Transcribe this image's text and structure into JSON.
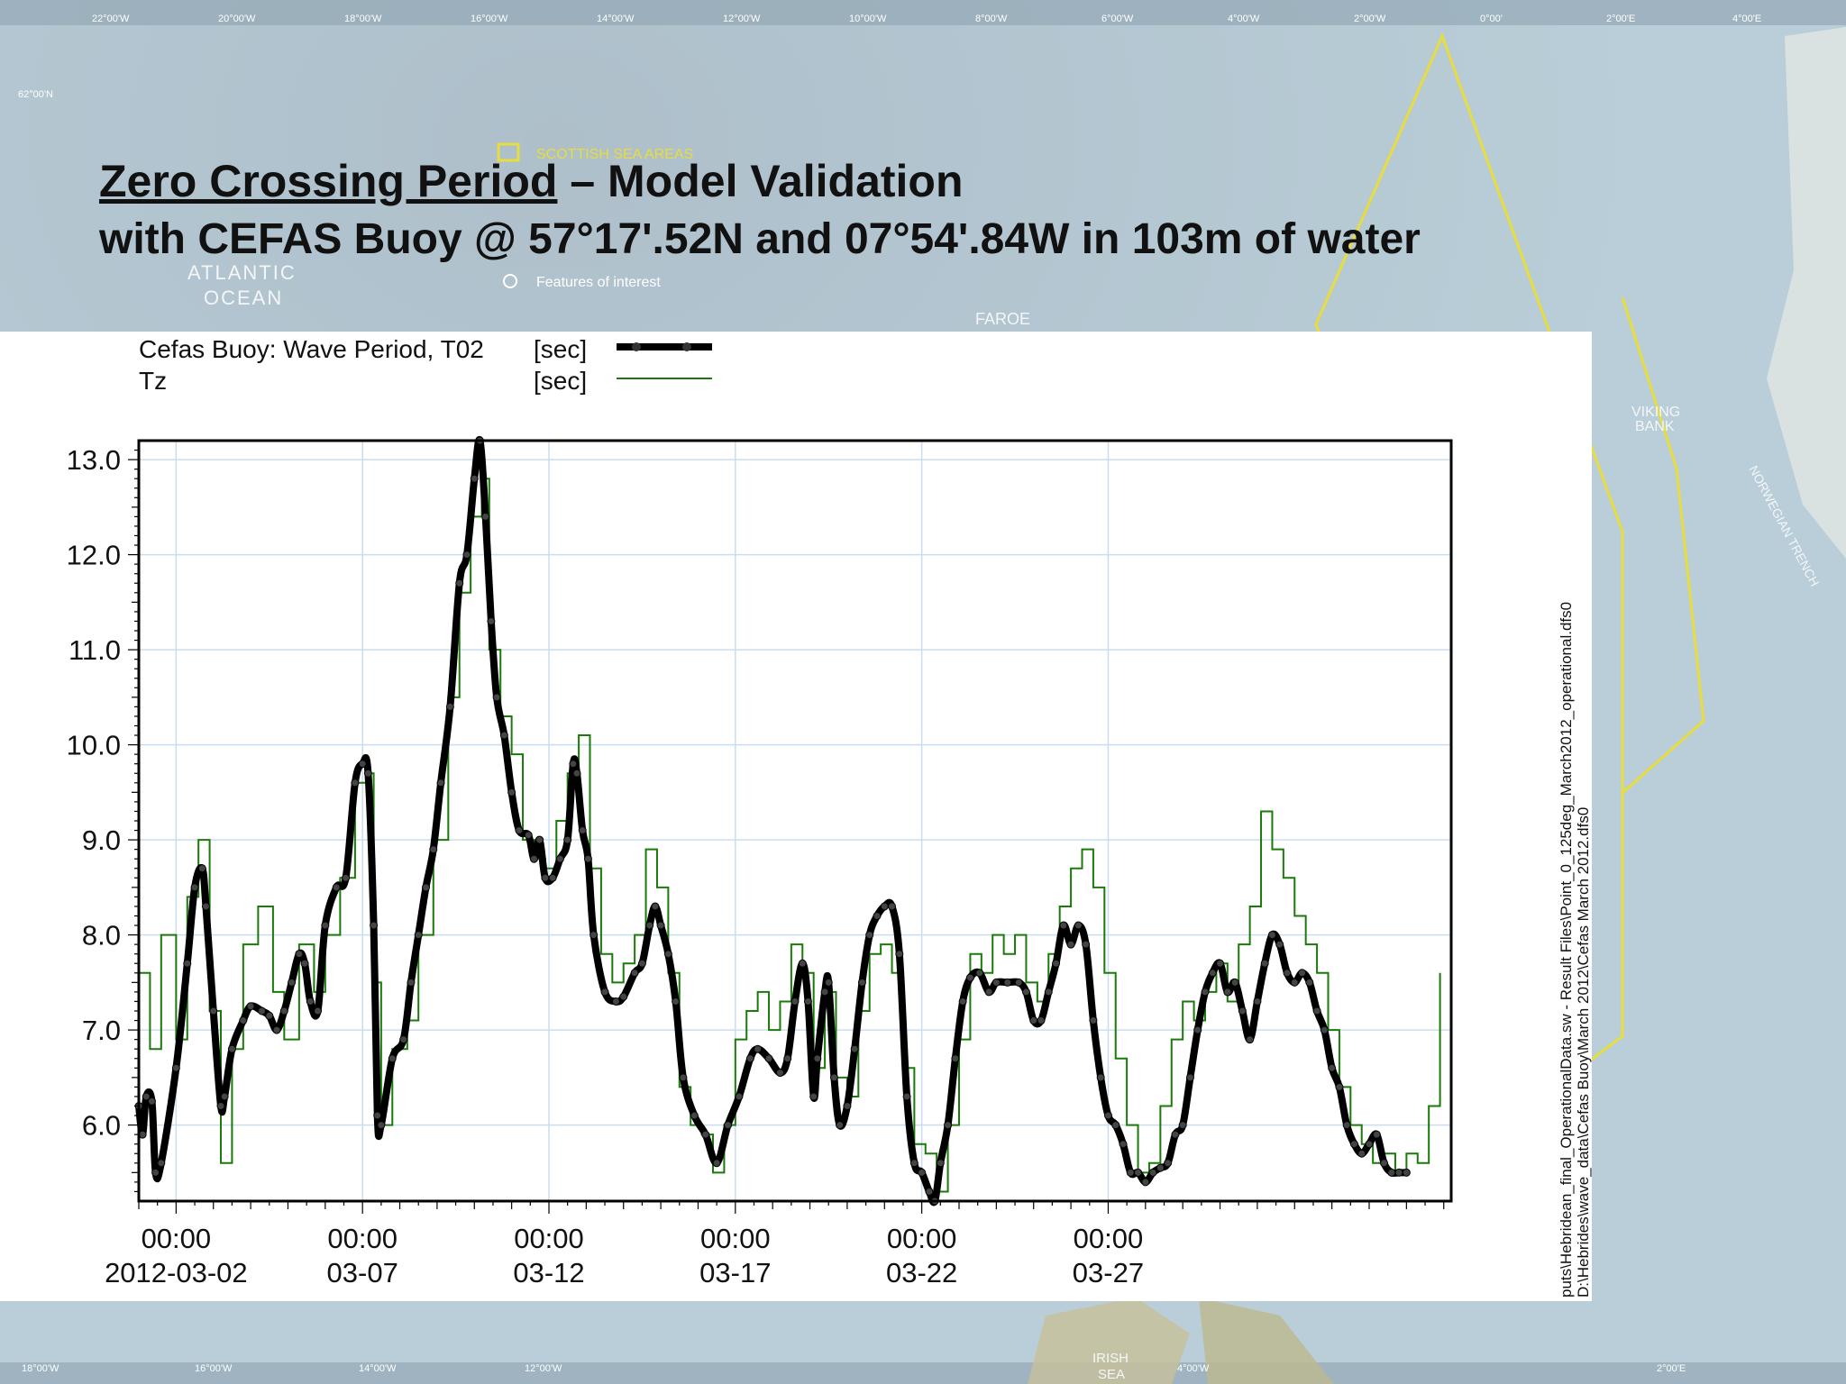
{
  "slide": {
    "title_underlined": "Zero Crossing Period",
    "title_rest": " – Model Validation",
    "subtitle": "with CEFAS Buoy @ 57°17'.52N and 07°54'.84W in 103m of water"
  },
  "map_labels": {
    "legend_scottish_sea_areas": "SCOTTISH SEA AREAS",
    "legend_features": "Features of interest",
    "atlantic": "ATLANTIC",
    "ocean": "OCEAN",
    "faroe": "FAROE",
    "viking": "VIKING",
    "bank": "BANK",
    "norwegian_trench": "NORWEGIAN TRENCH",
    "irish": "IRISH",
    "sea": "SEA",
    "lat_62": "62°00'N",
    "top_lon": [
      "22°00'W",
      "20°00'W",
      "18°00'W",
      "16°00'W",
      "14°00'W",
      "12°00'W",
      "10°00'W",
      "8°00'W",
      "6°00'W",
      "4°00'W",
      "2°00'W",
      "0°00'",
      "2°00'E",
      "4°00'E"
    ],
    "bottom_lon": [
      "18°00'W",
      "16°00'W",
      "14°00'W",
      "12°00'W",
      "4°00'W",
      "2°00'E"
    ]
  },
  "colors": {
    "series1": "#000000",
    "series2": "#1a7a0a",
    "grid": "#c9ddf0",
    "sea_area_line": "#e8dd3c"
  },
  "side_paths": {
    "line1": "puts\\Hebridean_final_OperationalData.sw - Result Files\\Point_0_125deg_March2012_operational.dfs0",
    "line2": "D:\\Hebrides\\wave_data\\Cefas Buoy\\March 2012\\Cefas March 2012.dfs0"
  },
  "chart_data": {
    "type": "line",
    "title": "",
    "xlabel": "",
    "ylabel": "",
    "x_range_days": [
      1.0,
      32.2
    ],
    "ylim": [
      5.2,
      13.2
    ],
    "yticks": [
      "13.0",
      "12.0",
      "11.0",
      "10.0",
      "9.0",
      "8.0",
      "7.0",
      "6.0"
    ],
    "xticks": [
      {
        "time": "00:00",
        "date": "2012-03-02"
      },
      {
        "time": "00:00",
        "date": "03-07"
      },
      {
        "time": "00:00",
        "date": "03-12"
      },
      {
        "time": "00:00",
        "date": "03-17"
      },
      {
        "time": "00:00",
        "date": "03-22"
      },
      {
        "time": "00:00",
        "date": "03-27"
      }
    ],
    "grid": true,
    "legend_position": "top-left",
    "series": [
      {
        "name": "Cefas Buoy: Wave Period, T02",
        "unit": "[sec]",
        "style": "thick line with circle markers",
        "points": [
          [
            1.0,
            6.2
          ],
          [
            1.1,
            5.9
          ],
          [
            1.2,
            6.3
          ],
          [
            1.35,
            6.25
          ],
          [
            1.45,
            5.5
          ],
          [
            1.6,
            5.6
          ],
          [
            2.0,
            6.6
          ],
          [
            2.3,
            7.7
          ],
          [
            2.5,
            8.5
          ],
          [
            2.7,
            8.7
          ],
          [
            2.8,
            8.3
          ],
          [
            3.0,
            7.2
          ],
          [
            3.2,
            6.2
          ],
          [
            3.3,
            6.3
          ],
          [
            3.5,
            6.8
          ],
          [
            3.8,
            7.1
          ],
          [
            4.0,
            7.25
          ],
          [
            4.3,
            7.2
          ],
          [
            4.5,
            7.15
          ],
          [
            4.7,
            7.0
          ],
          [
            4.9,
            7.2
          ],
          [
            5.1,
            7.5
          ],
          [
            5.3,
            7.8
          ],
          [
            5.45,
            7.7
          ],
          [
            5.6,
            7.3
          ],
          [
            5.8,
            7.2
          ],
          [
            6.0,
            8.1
          ],
          [
            6.3,
            8.5
          ],
          [
            6.55,
            8.6
          ],
          [
            6.8,
            9.6
          ],
          [
            7.0,
            9.8
          ],
          [
            7.15,
            9.7
          ],
          [
            7.3,
            8.1
          ],
          [
            7.4,
            6.1
          ],
          [
            7.5,
            6.0
          ],
          [
            7.8,
            6.7
          ],
          [
            8.1,
            6.9
          ],
          [
            8.3,
            7.5
          ],
          [
            8.5,
            8.0
          ],
          [
            8.7,
            8.5
          ],
          [
            8.9,
            8.9
          ],
          [
            9.1,
            9.6
          ],
          [
            9.35,
            10.4
          ],
          [
            9.6,
            11.7
          ],
          [
            9.8,
            12.0
          ],
          [
            10.0,
            12.8
          ],
          [
            10.15,
            13.2
          ],
          [
            10.3,
            12.4
          ],
          [
            10.45,
            11.3
          ],
          [
            10.6,
            10.5
          ],
          [
            10.8,
            10.1
          ],
          [
            11.0,
            9.5
          ],
          [
            11.2,
            9.1
          ],
          [
            11.45,
            9.05
          ],
          [
            11.6,
            8.8
          ],
          [
            11.75,
            9.0
          ],
          [
            11.9,
            8.6
          ],
          [
            12.1,
            8.6
          ],
          [
            12.3,
            8.8
          ],
          [
            12.5,
            9.0
          ],
          [
            12.65,
            9.8
          ],
          [
            12.75,
            9.7
          ],
          [
            12.9,
            9.1
          ],
          [
            13.05,
            8.8
          ],
          [
            13.2,
            8.0
          ],
          [
            13.5,
            7.4
          ],
          [
            13.8,
            7.3
          ],
          [
            14.0,
            7.35
          ],
          [
            14.3,
            7.6
          ],
          [
            14.5,
            7.7
          ],
          [
            14.7,
            8.1
          ],
          [
            14.85,
            8.3
          ],
          [
            15.0,
            8.1
          ],
          [
            15.2,
            7.8
          ],
          [
            15.4,
            7.3
          ],
          [
            15.6,
            6.5
          ],
          [
            15.9,
            6.1
          ],
          [
            16.2,
            5.9
          ],
          [
            16.5,
            5.6
          ],
          [
            16.8,
            6.0
          ],
          [
            17.1,
            6.3
          ],
          [
            17.4,
            6.7
          ],
          [
            17.6,
            6.8
          ],
          [
            17.9,
            6.7
          ],
          [
            18.2,
            6.55
          ],
          [
            18.4,
            6.7
          ],
          [
            18.6,
            7.3
          ],
          [
            18.8,
            7.7
          ],
          [
            18.95,
            7.3
          ],
          [
            19.1,
            6.3
          ],
          [
            19.2,
            6.7
          ],
          [
            19.4,
            7.4
          ],
          [
            19.5,
            7.5
          ],
          [
            19.65,
            6.5
          ],
          [
            19.8,
            6.0
          ],
          [
            20.0,
            6.2
          ],
          [
            20.2,
            6.8
          ],
          [
            20.4,
            7.5
          ],
          [
            20.6,
            8.0
          ],
          [
            20.8,
            8.2
          ],
          [
            21.0,
            8.3
          ],
          [
            21.2,
            8.3
          ],
          [
            21.4,
            7.8
          ],
          [
            21.6,
            6.3
          ],
          [
            21.8,
            5.6
          ],
          [
            22.0,
            5.5
          ],
          [
            22.2,
            5.3
          ],
          [
            22.35,
            5.2
          ],
          [
            22.5,
            5.6
          ],
          [
            22.7,
            6.0
          ],
          [
            22.9,
            6.7
          ],
          [
            23.1,
            7.3
          ],
          [
            23.3,
            7.55
          ],
          [
            23.55,
            7.6
          ],
          [
            23.8,
            7.4
          ],
          [
            24.0,
            7.5
          ],
          [
            24.3,
            7.5
          ],
          [
            24.6,
            7.5
          ],
          [
            24.8,
            7.4
          ],
          [
            25.0,
            7.1
          ],
          [
            25.2,
            7.1
          ],
          [
            25.4,
            7.4
          ],
          [
            25.6,
            7.7
          ],
          [
            25.8,
            8.1
          ],
          [
            26.0,
            7.9
          ],
          [
            26.2,
            8.1
          ],
          [
            26.4,
            7.9
          ],
          [
            26.6,
            7.1
          ],
          [
            26.8,
            6.5
          ],
          [
            27.0,
            6.1
          ],
          [
            27.2,
            6.0
          ],
          [
            27.4,
            5.8
          ],
          [
            27.6,
            5.5
          ],
          [
            27.8,
            5.5
          ],
          [
            28.0,
            5.4
          ],
          [
            28.2,
            5.5
          ],
          [
            28.4,
            5.55
          ],
          [
            28.6,
            5.6
          ],
          [
            28.8,
            5.9
          ],
          [
            29.0,
            6.0
          ],
          [
            29.2,
            6.5
          ],
          [
            29.4,
            7.0
          ],
          [
            29.6,
            7.4
          ],
          [
            29.8,
            7.6
          ],
          [
            30.0,
            7.7
          ],
          [
            30.2,
            7.4
          ],
          [
            30.4,
            7.5
          ],
          [
            30.6,
            7.2
          ],
          [
            30.8,
            6.9
          ],
          [
            31.0,
            7.3
          ],
          [
            31.2,
            7.7
          ],
          [
            31.4,
            8.0
          ],
          [
            31.6,
            7.9
          ],
          [
            31.8,
            7.6
          ],
          [
            32.0,
            7.5
          ],
          [
            32.2,
            7.6
          ],
          [
            32.4,
            7.5
          ],
          [
            32.6,
            7.2
          ],
          [
            32.8,
            7.0
          ],
          [
            33.0,
            6.6
          ],
          [
            33.2,
            6.4
          ],
          [
            33.4,
            6.0
          ],
          [
            33.6,
            5.8
          ],
          [
            33.8,
            5.7
          ],
          [
            34.0,
            5.8
          ],
          [
            34.2,
            5.9
          ],
          [
            34.4,
            5.6
          ],
          [
            34.6,
            5.5
          ],
          [
            34.8,
            5.5
          ],
          [
            35.0,
            5.5
          ]
        ]
      },
      {
        "name": "Tz",
        "unit": "[sec]",
        "style": "thin green stepped line",
        "points": [
          [
            1.0,
            7.6
          ],
          [
            1.3,
            6.8
          ],
          [
            1.6,
            8.0
          ],
          [
            2.0,
            6.9
          ],
          [
            2.3,
            8.4
          ],
          [
            2.6,
            9.0
          ],
          [
            2.9,
            7.2
          ],
          [
            3.2,
            5.6
          ],
          [
            3.5,
            6.8
          ],
          [
            3.8,
            7.9
          ],
          [
            4.2,
            8.3
          ],
          [
            4.6,
            7.4
          ],
          [
            4.9,
            6.9
          ],
          [
            5.3,
            7.9
          ],
          [
            5.7,
            7.4
          ],
          [
            6.0,
            8.0
          ],
          [
            6.4,
            8.6
          ],
          [
            6.8,
            9.6
          ],
          [
            7.1,
            9.7
          ],
          [
            7.3,
            7.5
          ],
          [
            7.5,
            6.0
          ],
          [
            7.8,
            6.8
          ],
          [
            8.2,
            7.1
          ],
          [
            8.5,
            8.0
          ],
          [
            8.9,
            9.0
          ],
          [
            9.3,
            10.5
          ],
          [
            9.6,
            11.6
          ],
          [
            9.9,
            12.4
          ],
          [
            10.2,
            12.8
          ],
          [
            10.4,
            11.0
          ],
          [
            10.7,
            10.3
          ],
          [
            11.0,
            9.9
          ],
          [
            11.3,
            9.0
          ],
          [
            11.6,
            8.8
          ],
          [
            11.9,
            8.7
          ],
          [
            12.2,
            9.2
          ],
          [
            12.5,
            9.7
          ],
          [
            12.8,
            10.1
          ],
          [
            13.1,
            8.7
          ],
          [
            13.4,
            7.8
          ],
          [
            13.7,
            7.5
          ],
          [
            14.0,
            7.7
          ],
          [
            14.3,
            8.0
          ],
          [
            14.6,
            8.9
          ],
          [
            14.9,
            8.5
          ],
          [
            15.2,
            7.6
          ],
          [
            15.5,
            6.4
          ],
          [
            15.8,
            6.0
          ],
          [
            16.1,
            5.9
          ],
          [
            16.4,
            5.5
          ],
          [
            16.7,
            6.0
          ],
          [
            17.0,
            6.9
          ],
          [
            17.3,
            7.2
          ],
          [
            17.6,
            7.4
          ],
          [
            17.9,
            7.0
          ],
          [
            18.2,
            7.3
          ],
          [
            18.5,
            7.9
          ],
          [
            18.8,
            7.6
          ],
          [
            19.1,
            6.6
          ],
          [
            19.4,
            7.4
          ],
          [
            19.7,
            6.5
          ],
          [
            20.0,
            6.3
          ],
          [
            20.3,
            7.2
          ],
          [
            20.6,
            7.8
          ],
          [
            20.9,
            7.9
          ],
          [
            21.2,
            7.6
          ],
          [
            21.5,
            6.6
          ],
          [
            21.8,
            5.8
          ],
          [
            22.1,
            5.7
          ],
          [
            22.4,
            5.3
          ],
          [
            22.7,
            6.0
          ],
          [
            23.0,
            6.9
          ],
          [
            23.3,
            7.8
          ],
          [
            23.6,
            7.6
          ],
          [
            23.9,
            8.0
          ],
          [
            24.2,
            7.8
          ],
          [
            24.5,
            8.0
          ],
          [
            24.8,
            7.5
          ],
          [
            25.1,
            7.3
          ],
          [
            25.4,
            7.8
          ],
          [
            25.7,
            8.3
          ],
          [
            26.0,
            8.7
          ],
          [
            26.3,
            8.9
          ],
          [
            26.6,
            8.5
          ],
          [
            26.9,
            7.6
          ],
          [
            27.2,
            6.7
          ],
          [
            27.5,
            6.0
          ],
          [
            27.8,
            5.5
          ],
          [
            28.1,
            5.6
          ],
          [
            28.4,
            6.2
          ],
          [
            28.7,
            6.9
          ],
          [
            29.0,
            7.3
          ],
          [
            29.3,
            7.1
          ],
          [
            29.6,
            7.4
          ],
          [
            29.9,
            7.7
          ],
          [
            30.2,
            7.3
          ],
          [
            30.5,
            7.9
          ],
          [
            30.8,
            8.3
          ],
          [
            31.1,
            9.3
          ],
          [
            31.4,
            8.9
          ],
          [
            31.7,
            8.6
          ],
          [
            32.0,
            8.2
          ],
          [
            32.3,
            7.9
          ],
          [
            32.6,
            7.6
          ],
          [
            32.9,
            7.0
          ],
          [
            33.2,
            6.4
          ],
          [
            33.5,
            6.0
          ],
          [
            33.8,
            5.8
          ],
          [
            34.1,
            5.6
          ],
          [
            34.4,
            5.7
          ],
          [
            34.7,
            5.5
          ],
          [
            35.0,
            5.7
          ],
          [
            35.3,
            5.6
          ],
          [
            35.6,
            6.2
          ],
          [
            35.9,
            7.6
          ]
        ]
      }
    ]
  }
}
